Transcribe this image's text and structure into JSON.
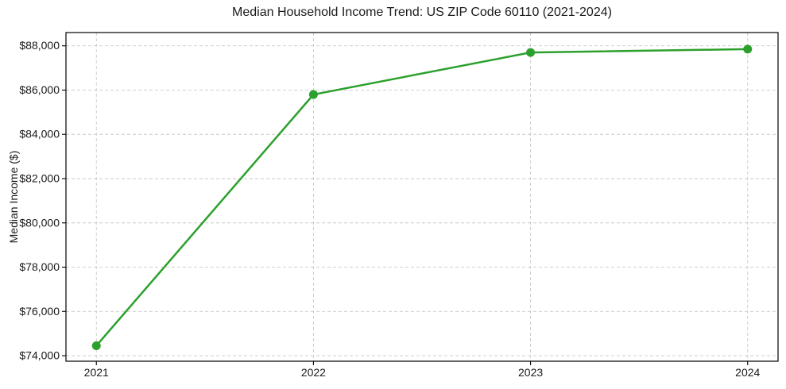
{
  "chart_data": {
    "type": "line",
    "title": "Median Household Income Trend: US ZIP Code 60110 (2021-2024)",
    "xlabel": "",
    "ylabel": "Median Income ($)",
    "x": [
      2021,
      2022,
      2023,
      2024
    ],
    "values": [
      74450,
      85800,
      87700,
      87850
    ],
    "xticks": [
      2021,
      2022,
      2023,
      2024
    ],
    "xtick_labels": [
      "2021",
      "2022",
      "2023",
      "2024"
    ],
    "yticks": [
      74000,
      76000,
      78000,
      80000,
      82000,
      84000,
      86000,
      88000
    ],
    "ytick_labels": [
      "$74,000",
      "$76,000",
      "$78,000",
      "$80,000",
      "$82,000",
      "$84,000",
      "$86,000",
      "$88,000"
    ],
    "xlim": [
      2020.86,
      2024.14
    ],
    "ylim": [
      73750,
      88600
    ],
    "grid": true,
    "grid_style": "dashed",
    "legend": "none",
    "line_color": "#2ca02c",
    "marker": "circle",
    "marker_size_px": 5.5,
    "grid_color": "#c9c9c9",
    "spine_color": "#000000",
    "background_color": "#ffffff",
    "text_color": "#1a1a1a"
  }
}
